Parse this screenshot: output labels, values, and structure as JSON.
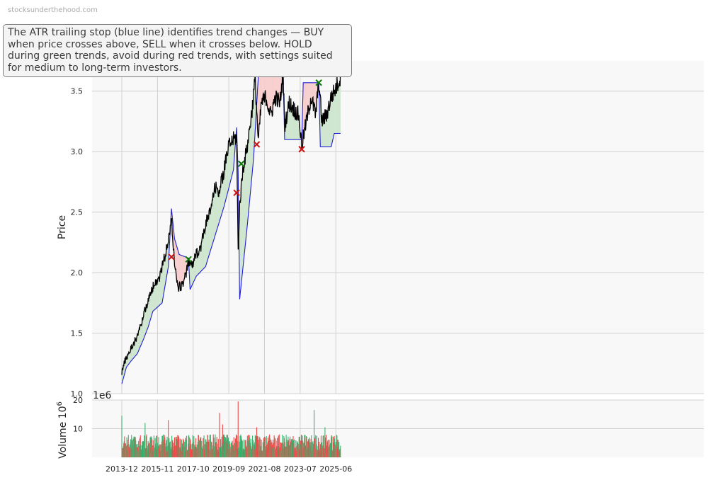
{
  "watermark": "stocksunderthehood.com",
  "annotation": "The ATR trailing stop (blue line) identifies trend changes — BUY when price crosses above, SELL when it crosses below. HOLD during green trends, avoid during red trends, with settings suited for medium to long-term investors.",
  "colors": {
    "price_line": "#000000",
    "stop_line": "#1f1fd6",
    "bull_fill": "#cfe6cf",
    "bear_fill": "#f8cfcf",
    "buy_marker": "#0a7a0a",
    "sell_marker": "#cc1111",
    "volume_up": "#3cb371",
    "volume_down": "#f04848",
    "plot_bg": "#f8f8f8",
    "grid": "#d0d0d0"
  },
  "chart_data": [
    {
      "type": "line",
      "ylabel": "Price",
      "xlabel": "",
      "ylim": [
        1.0,
        3.75
      ],
      "yticks": [
        "1.0",
        "1.5",
        "2.0",
        "2.5",
        "3.0",
        "3.5"
      ],
      "xticks": [
        "2013-12",
        "2015-11",
        "2017-10",
        "2019-09",
        "2021-08",
        "2023-07",
        "2025-06"
      ],
      "xlim": [
        "2013-12",
        "2025-09"
      ],
      "grid": true,
      "price_anchors": [
        [
          "2013-12",
          1.18
        ],
        [
          "2014-02",
          1.27
        ],
        [
          "2014-05",
          1.35
        ],
        [
          "2014-09",
          1.45
        ],
        [
          "2014-12",
          1.55
        ],
        [
          "2015-03",
          1.7
        ],
        [
          "2015-06",
          1.8
        ],
        [
          "2015-09",
          1.92
        ],
        [
          "2015-12",
          1.95
        ],
        [
          "2016-03",
          2.1
        ],
        [
          "2016-06",
          2.25
        ],
        [
          "2016-08",
          2.45
        ],
        [
          "2016-10",
          2.08
        ],
        [
          "2016-12",
          1.88
        ],
        [
          "2017-02",
          1.88
        ],
        [
          "2017-05",
          1.97
        ],
        [
          "2017-07",
          2.08
        ],
        [
          "2017-10",
          2.07
        ],
        [
          "2017-12",
          2.15
        ],
        [
          "2018-03",
          2.22
        ],
        [
          "2018-06",
          2.4
        ],
        [
          "2018-09",
          2.5
        ],
        [
          "2018-12",
          2.7
        ],
        [
          "2019-03",
          2.68
        ],
        [
          "2019-06",
          2.85
        ],
        [
          "2019-09",
          3.05
        ],
        [
          "2019-12",
          3.1
        ],
        [
          "2020-02",
          3.12
        ],
        [
          "2020-03",
          2.18
        ],
        [
          "2020-04",
          2.55
        ],
        [
          "2020-06",
          2.85
        ],
        [
          "2020-09",
          3.05
        ],
        [
          "2020-12",
          3.35
        ],
        [
          "2021-02",
          3.6
        ],
        [
          "2021-04",
          3.08
        ],
        [
          "2021-06",
          3.4
        ],
        [
          "2021-09",
          3.45
        ],
        [
          "2021-12",
          3.3
        ],
        [
          "2022-03",
          3.45
        ],
        [
          "2022-06",
          3.4
        ],
        [
          "2022-08",
          3.65
        ],
        [
          "2022-09",
          3.22
        ],
        [
          "2022-12",
          3.4
        ],
        [
          "2023-03",
          3.35
        ],
        [
          "2023-06",
          3.3
        ],
        [
          "2023-08",
          3.05
        ],
        [
          "2023-11",
          3.25
        ],
        [
          "2024-02",
          3.45
        ],
        [
          "2024-05",
          3.3
        ],
        [
          "2024-07",
          3.58
        ],
        [
          "2024-09",
          3.25
        ],
        [
          "2024-12",
          3.3
        ],
        [
          "2025-03",
          3.45
        ],
        [
          "2025-06",
          3.52
        ],
        [
          "2025-09",
          3.62
        ]
      ],
      "stop_anchors": [
        [
          "2013-12",
          1.08
        ],
        [
          "2014-03",
          1.22
        ],
        [
          "2014-06",
          1.27
        ],
        [
          "2014-10",
          1.33
        ],
        [
          "2015-02",
          1.45
        ],
        [
          "2015-05",
          1.55
        ],
        [
          "2015-08",
          1.68
        ],
        [
          "2016-02",
          1.75
        ],
        [
          "2016-06",
          2.05
        ],
        [
          "2016-08",
          2.53
        ],
        [
          "2016-10",
          2.28
        ],
        [
          "2017-01",
          2.15
        ],
        [
          "2017-07",
          2.12
        ],
        [
          "2017-08",
          1.86
        ],
        [
          "2017-12",
          1.97
        ],
        [
          "2018-06",
          2.05
        ],
        [
          "2018-12",
          2.3
        ],
        [
          "2019-06",
          2.55
        ],
        [
          "2019-12",
          2.85
        ],
        [
          "2020-02",
          3.2
        ],
        [
          "2020-03",
          2.83
        ],
        [
          "2020-04",
          1.78
        ],
        [
          "2020-09",
          2.4
        ],
        [
          "2021-01",
          2.95
        ],
        [
          "2021-04",
          3.62
        ],
        [
          "2022-08",
          3.65
        ],
        [
          "2022-09",
          3.1
        ],
        [
          "2023-08",
          3.1
        ],
        [
          "2023-09",
          3.57
        ],
        [
          "2024-07",
          3.57
        ],
        [
          "2024-08",
          3.04
        ],
        [
          "2025-03",
          3.04
        ],
        [
          "2025-05",
          3.15
        ],
        [
          "2025-09",
          3.15
        ]
      ],
      "signals": [
        {
          "type": "sell",
          "date": "2016-08",
          "price": 2.13
        },
        {
          "type": "buy",
          "date": "2017-07",
          "price": 2.11
        },
        {
          "type": "sell",
          "date": "2020-02",
          "price": 2.66
        },
        {
          "type": "buy",
          "date": "2020-05",
          "price": 2.9
        },
        {
          "type": "sell",
          "date": "2021-03",
          "price": 3.06
        },
        {
          "type": "buy",
          "date": "2022-08",
          "price": 3.67
        },
        {
          "type": "sell",
          "date": "2023-08",
          "price": 3.02
        },
        {
          "type": "buy",
          "date": "2024-07",
          "price": 3.57
        }
      ]
    },
    {
      "type": "bar",
      "ylabel": "Volume",
      "ylabel_exponent": "6",
      "offset_text": "1e6",
      "ylim": [
        0,
        20
      ],
      "yticks": [
        "10",
        "20"
      ],
      "unit_multiplier": 1000000,
      "typical_range": [
        2,
        8
      ],
      "spikes": [
        {
          "date": "2013-12",
          "value": 14.5,
          "up": true
        },
        {
          "date": "2015-03",
          "value": 12.0,
          "up": true
        },
        {
          "date": "2016-06",
          "value": 13.0,
          "up": false
        },
        {
          "date": "2019-03",
          "value": 15.5,
          "up": false
        },
        {
          "date": "2019-05",
          "value": 11.5,
          "up": false
        },
        {
          "date": "2020-03",
          "value": 19.5,
          "up": false
        },
        {
          "date": "2021-03",
          "value": 10.5,
          "up": false
        },
        {
          "date": "2024-04",
          "value": 16.5,
          "up": true
        },
        {
          "date": "2024-11",
          "value": 10.5,
          "up": true
        }
      ]
    }
  ]
}
